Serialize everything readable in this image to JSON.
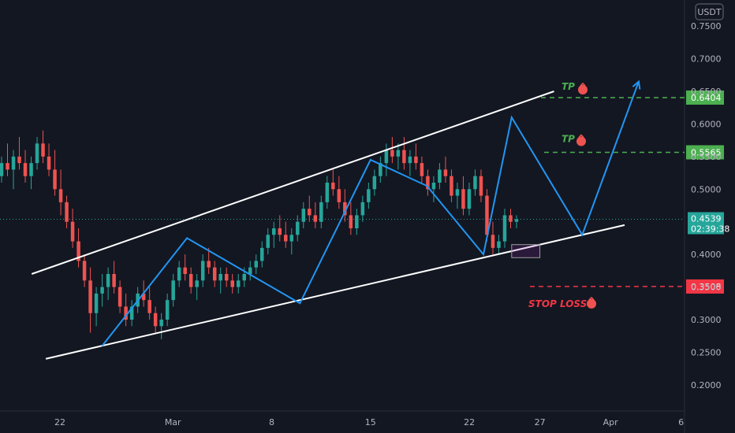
{
  "chart_data": {
    "type": "candlestick",
    "currency": "USDT",
    "y_ticks": [
      "0.7500",
      "0.7000",
      "0.6500",
      "0.6000",
      "0.5500",
      "0.5000",
      "0.4500",
      "0.4000",
      "0.3500",
      "0.3000",
      "0.2500",
      "0.2000"
    ],
    "y_tick_values": [
      0.75,
      0.7,
      0.65,
      0.6,
      0.55,
      0.5,
      0.45,
      0.4,
      0.35,
      0.3,
      0.25,
      0.2
    ],
    "x_ticks": [
      "22",
      "Mar",
      "8",
      "15",
      "22",
      "27",
      "Apr",
      "6"
    ],
    "x_tick_values": [
      "2024-02-22",
      "2024-03-01",
      "2024-03-08",
      "2024-03-15",
      "2024-03-22",
      "2024-03-27",
      "2024-04-01",
      "2024-04-06"
    ],
    "ylim": [
      0.16,
      0.79
    ],
    "grid": false,
    "current_price": "0.4539",
    "countdown": "02:39:38",
    "levels": [
      {
        "label": "TP",
        "price": "0.6404",
        "value": 0.6404,
        "color": "#4caf50"
      },
      {
        "label": "TP",
        "price": "0.5565",
        "value": 0.5565,
        "color": "#4caf50"
      },
      {
        "label": "STOP LOSS",
        "price": "0.3508",
        "value": 0.3508,
        "color": "#f23645"
      }
    ],
    "candles_ohlc": [
      [
        0.52,
        0.55,
        0.51,
        0.54
      ],
      [
        0.54,
        0.57,
        0.52,
        0.53
      ],
      [
        0.53,
        0.56,
        0.5,
        0.55
      ],
      [
        0.55,
        0.58,
        0.53,
        0.54
      ],
      [
        0.54,
        0.56,
        0.51,
        0.52
      ],
      [
        0.52,
        0.55,
        0.5,
        0.54
      ],
      [
        0.54,
        0.58,
        0.53,
        0.57
      ],
      [
        0.57,
        0.59,
        0.54,
        0.55
      ],
      [
        0.55,
        0.57,
        0.52,
        0.53
      ],
      [
        0.53,
        0.56,
        0.49,
        0.5
      ],
      [
        0.5,
        0.53,
        0.46,
        0.48
      ],
      [
        0.48,
        0.49,
        0.44,
        0.45
      ],
      [
        0.45,
        0.47,
        0.41,
        0.42
      ],
      [
        0.42,
        0.44,
        0.38,
        0.39
      ],
      [
        0.39,
        0.4,
        0.35,
        0.36
      ],
      [
        0.36,
        0.38,
        0.28,
        0.31
      ],
      [
        0.31,
        0.35,
        0.29,
        0.34
      ],
      [
        0.34,
        0.37,
        0.32,
        0.35
      ],
      [
        0.35,
        0.38,
        0.33,
        0.37
      ],
      [
        0.37,
        0.39,
        0.34,
        0.35
      ],
      [
        0.35,
        0.36,
        0.31,
        0.32
      ],
      [
        0.32,
        0.34,
        0.29,
        0.3
      ],
      [
        0.3,
        0.33,
        0.29,
        0.32
      ],
      [
        0.32,
        0.35,
        0.31,
        0.34
      ],
      [
        0.34,
        0.36,
        0.32,
        0.33
      ],
      [
        0.33,
        0.35,
        0.3,
        0.31
      ],
      [
        0.31,
        0.32,
        0.28,
        0.29
      ],
      [
        0.29,
        0.31,
        0.27,
        0.3
      ],
      [
        0.3,
        0.34,
        0.29,
        0.33
      ],
      [
        0.33,
        0.37,
        0.32,
        0.36
      ],
      [
        0.36,
        0.39,
        0.35,
        0.38
      ],
      [
        0.38,
        0.4,
        0.36,
        0.37
      ],
      [
        0.37,
        0.38,
        0.34,
        0.35
      ],
      [
        0.35,
        0.37,
        0.33,
        0.36
      ],
      [
        0.36,
        0.4,
        0.35,
        0.39
      ],
      [
        0.39,
        0.41,
        0.37,
        0.38
      ],
      [
        0.38,
        0.39,
        0.35,
        0.36
      ],
      [
        0.36,
        0.38,
        0.34,
        0.37
      ],
      [
        0.37,
        0.38,
        0.35,
        0.36
      ],
      [
        0.36,
        0.37,
        0.34,
        0.35
      ],
      [
        0.35,
        0.37,
        0.34,
        0.36
      ],
      [
        0.36,
        0.38,
        0.35,
        0.37
      ],
      [
        0.37,
        0.39,
        0.36,
        0.38
      ],
      [
        0.38,
        0.4,
        0.37,
        0.39
      ],
      [
        0.39,
        0.42,
        0.38,
        0.41
      ],
      [
        0.41,
        0.44,
        0.4,
        0.43
      ],
      [
        0.43,
        0.45,
        0.41,
        0.44
      ],
      [
        0.44,
        0.46,
        0.42,
        0.43
      ],
      [
        0.43,
        0.45,
        0.41,
        0.42
      ],
      [
        0.42,
        0.44,
        0.4,
        0.43
      ],
      [
        0.43,
        0.46,
        0.42,
        0.45
      ],
      [
        0.45,
        0.48,
        0.44,
        0.47
      ],
      [
        0.47,
        0.49,
        0.45,
        0.46
      ],
      [
        0.46,
        0.48,
        0.44,
        0.45
      ],
      [
        0.45,
        0.49,
        0.44,
        0.48
      ],
      [
        0.48,
        0.52,
        0.47,
        0.51
      ],
      [
        0.51,
        0.53,
        0.49,
        0.5
      ],
      [
        0.5,
        0.52,
        0.47,
        0.48
      ],
      [
        0.48,
        0.5,
        0.45,
        0.46
      ],
      [
        0.46,
        0.48,
        0.43,
        0.44
      ],
      [
        0.44,
        0.47,
        0.43,
        0.46
      ],
      [
        0.46,
        0.49,
        0.45,
        0.48
      ],
      [
        0.48,
        0.51,
        0.47,
        0.5
      ],
      [
        0.5,
        0.53,
        0.49,
        0.52
      ],
      [
        0.52,
        0.55,
        0.51,
        0.54
      ],
      [
        0.54,
        0.57,
        0.52,
        0.56
      ],
      [
        0.56,
        0.58,
        0.54,
        0.55
      ],
      [
        0.55,
        0.57,
        0.53,
        0.56
      ],
      [
        0.56,
        0.58,
        0.53,
        0.54
      ],
      [
        0.54,
        0.56,
        0.52,
        0.55
      ],
      [
        0.55,
        0.57,
        0.53,
        0.54
      ],
      [
        0.54,
        0.55,
        0.51,
        0.52
      ],
      [
        0.52,
        0.53,
        0.49,
        0.5
      ],
      [
        0.5,
        0.52,
        0.48,
        0.51
      ],
      [
        0.51,
        0.54,
        0.5,
        0.53
      ],
      [
        0.53,
        0.55,
        0.51,
        0.52
      ],
      [
        0.52,
        0.53,
        0.48,
        0.49
      ],
      [
        0.49,
        0.51,
        0.47,
        0.5
      ],
      [
        0.5,
        0.52,
        0.46,
        0.47
      ],
      [
        0.47,
        0.51,
        0.46,
        0.5
      ],
      [
        0.5,
        0.53,
        0.49,
        0.52
      ],
      [
        0.52,
        0.53,
        0.48,
        0.49
      ],
      [
        0.49,
        0.5,
        0.42,
        0.43
      ],
      [
        0.43,
        0.45,
        0.4,
        0.41
      ],
      [
        0.41,
        0.43,
        0.4,
        0.42
      ],
      [
        0.42,
        0.47,
        0.41,
        0.46
      ],
      [
        0.46,
        0.47,
        0.44,
        0.45
      ],
      [
        0.45,
        0.46,
        0.44,
        0.4539
      ]
    ],
    "trendlines": [
      {
        "name": "channel-upper",
        "points": [
          [
            "2024-02-20",
            0.37
          ],
          [
            "2024-03-28",
            0.65
          ]
        ]
      },
      {
        "name": "channel-lower",
        "points": [
          [
            "2024-02-21",
            0.24
          ],
          [
            "2024-04-02",
            0.445
          ]
        ]
      }
    ],
    "projection_path": [
      [
        "2024-02-25",
        0.26
      ],
      [
        "2024-03-02",
        0.425
      ],
      [
        "2024-03-04",
        0.4
      ],
      [
        "2024-03-10",
        0.325
      ],
      [
        "2024-03-15",
        0.545
      ],
      [
        "2024-03-19",
        0.505
      ],
      [
        "2024-03-23",
        0.4
      ],
      [
        "2024-03-25",
        0.61
      ],
      [
        "2024-03-30",
        0.43
      ],
      [
        "2024-04-03",
        0.665
      ]
    ],
    "highlight_box": {
      "x0": "2024-03-25",
      "x1": "2024-03-27",
      "y0": 0.395,
      "y1": 0.415
    }
  }
}
